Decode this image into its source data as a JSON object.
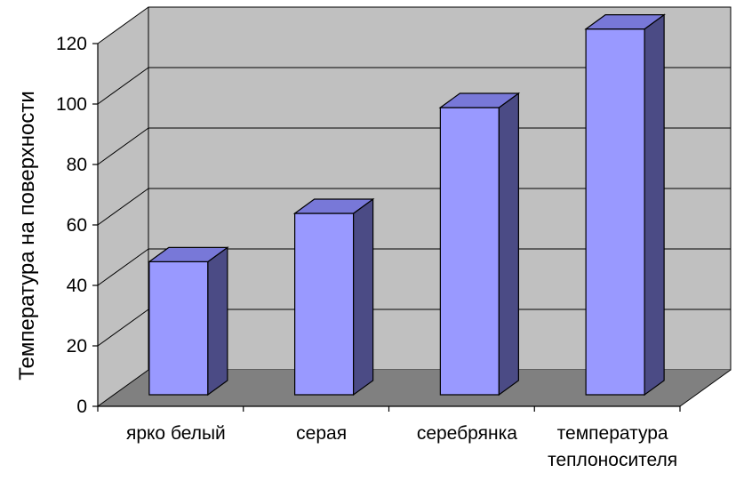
{
  "chart_data": {
    "type": "bar",
    "style": "3d-column",
    "title": "",
    "xlabel": "",
    "ylabel": "Температура на поверхности",
    "ylim": [
      0,
      120
    ],
    "yticks": [
      "0",
      "20",
      "40",
      "60",
      "80",
      "100",
      "120"
    ],
    "categories": [
      [
        "ярко белый"
      ],
      [
        "серая"
      ],
      [
        "серебрянка"
      ],
      [
        "температура",
        "теплоносителя"
      ]
    ],
    "values": [
      44,
      60,
      95,
      121
    ],
    "grid": true,
    "legend": "none",
    "colors": {
      "bar_front": "#9999FF",
      "bar_side": "#4B4B85",
      "bar_top": "#7878D8",
      "wall": "#C0C0C0",
      "floor": "#808080",
      "line": "#000000"
    }
  }
}
